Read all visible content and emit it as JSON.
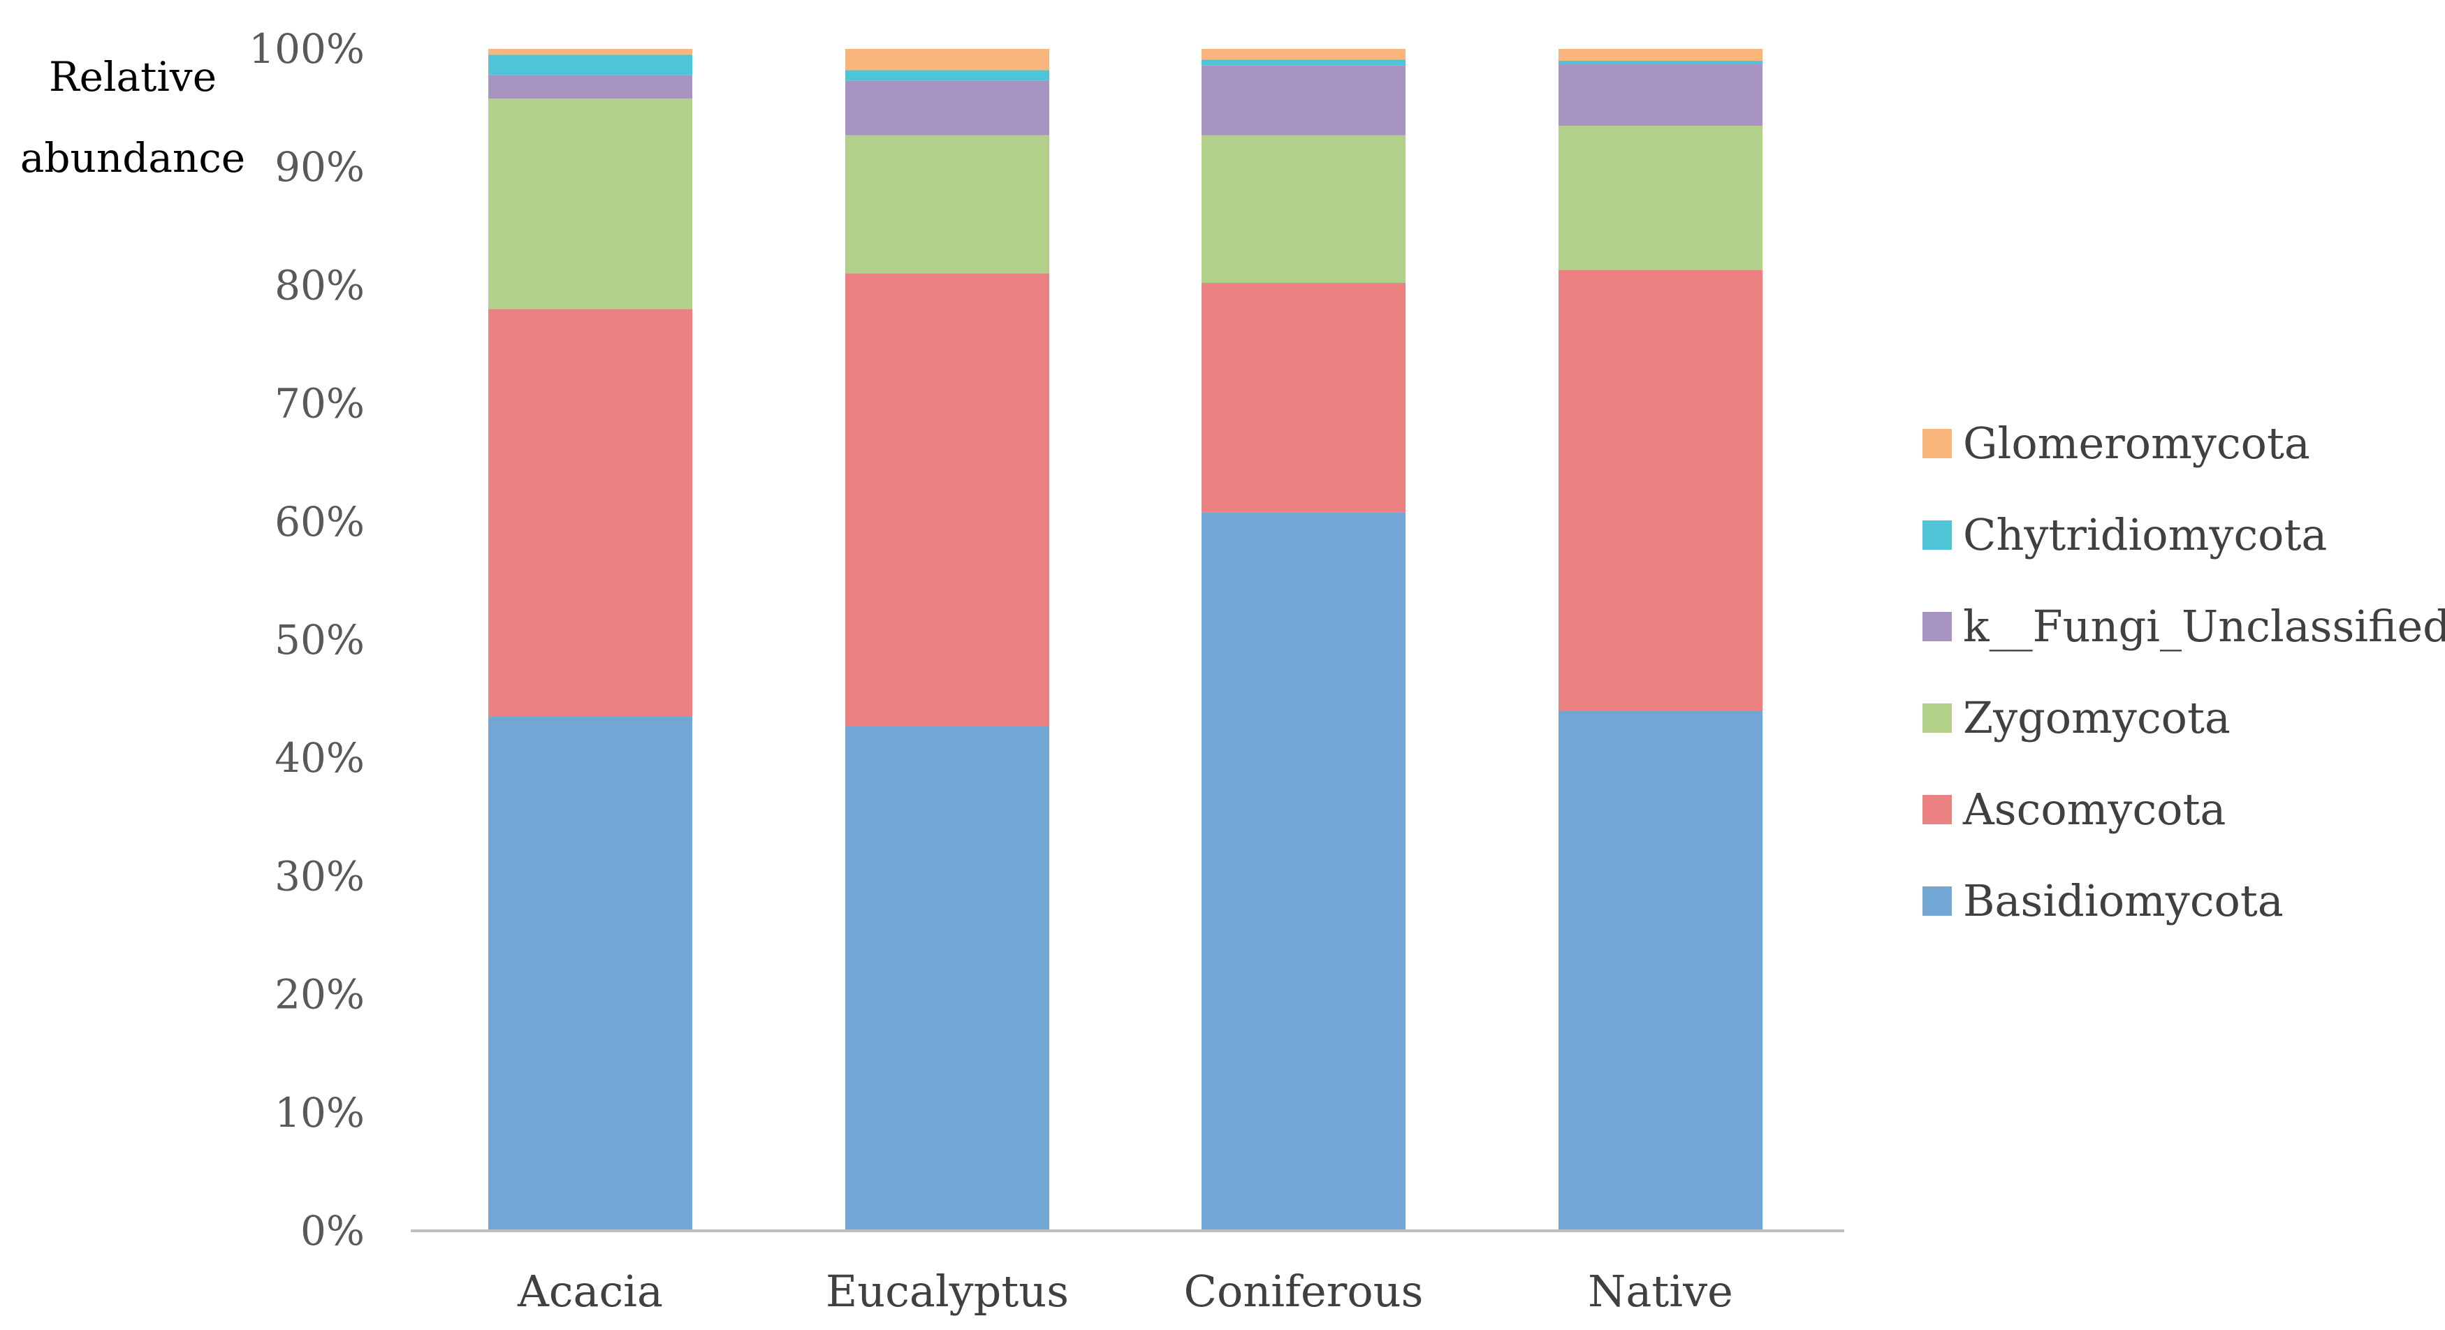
{
  "chart_data": {
    "type": "bar",
    "stacked": true,
    "title": "",
    "xlabel": "",
    "ylabel": [
      "Relative",
      "abundance"
    ],
    "ylim": [
      0,
      100
    ],
    "yticks": [
      "0%",
      "10%",
      "20%",
      "30%",
      "40%",
      "50%",
      "60%",
      "70%",
      "80%",
      "90%",
      "100%"
    ],
    "categories": [
      "Acacia",
      "Eucalyptus",
      "Coniferous",
      "Native"
    ],
    "series": [
      {
        "name": "Basidiomycota",
        "color": "#72A6D5",
        "values": [
          43.5,
          42.7,
          60.8,
          44.0
        ]
      },
      {
        "name": "Ascomycota",
        "color": "#EB8281",
        "values": [
          34.5,
          38.3,
          19.4,
          37.3
        ]
      },
      {
        "name": "Zygomycota",
        "color": "#B2D08A",
        "values": [
          17.8,
          11.7,
          12.5,
          12.2
        ]
      },
      {
        "name": "k__Fungi_Unclassified",
        "color": "#A894C2",
        "values": [
          2.0,
          4.6,
          5.9,
          5.2
        ]
      },
      {
        "name": "Chytridiomycota",
        "color": "#4FC4D7",
        "values": [
          1.7,
          0.9,
          0.5,
          0.3
        ]
      },
      {
        "name": "Glomeromycota",
        "color": "#F9B67C",
        "values": [
          0.5,
          1.8,
          0.9,
          1.0
        ]
      }
    ],
    "legend_position": "right",
    "legend_order": [
      "Glomeromycota",
      "Chytridiomycota",
      "k__Fungi_Unclassified",
      "Zygomycota",
      "Ascomycota",
      "Basidiomycota"
    ],
    "grid": false
  }
}
